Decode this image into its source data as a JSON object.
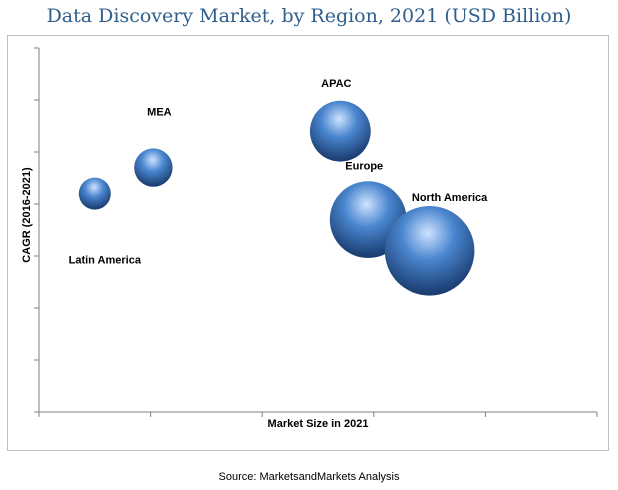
{
  "title": "Data Discovery Market, by Region, 2021 (USD Billion)",
  "source": "Source: MarketsandMarkets Analysis",
  "colors": {
    "title": "#2f5e8c",
    "bubble_light": "#cfe3ff",
    "bubble_mid": "#4a86cf",
    "bubble_dark": "#1c3f73",
    "axis": "#7f7f7f",
    "frame": "#bfbfbf"
  },
  "chart_data": {
    "type": "scatter",
    "subtype": "bubble",
    "title": "Data Discovery Market, by Region, 2021 (USD Billion)",
    "xlabel": "Market Size in 2021",
    "ylabel": "CAGR (2016-2021)",
    "xlim": [
      0,
      10
    ],
    "ylim": [
      0,
      7
    ],
    "grid": false,
    "legend": "none",
    "series": [
      {
        "points": [
          {
            "label": "Latin America",
            "x": 1.0,
            "y": 4.2,
            "size": 1.0
          },
          {
            "label": "MEA",
            "x": 2.05,
            "y": 4.7,
            "size": 1.2
          },
          {
            "label": "APAC",
            "x": 5.4,
            "y": 5.4,
            "size": 1.9
          },
          {
            "label": "Europe",
            "x": 5.9,
            "y": 3.7,
            "size": 2.4
          },
          {
            "label": "North America",
            "x": 7.0,
            "y": 3.1,
            "size": 2.8
          }
        ]
      }
    ]
  }
}
